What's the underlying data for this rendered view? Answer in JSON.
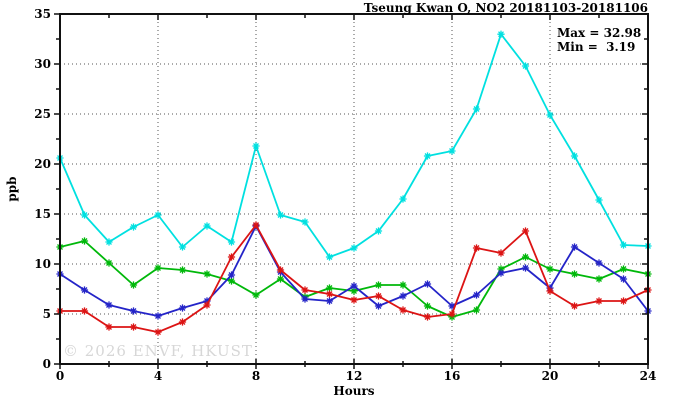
{
  "header": {
    "title": "Tseung Kwan O, NO2 20181103-20181106"
  },
  "annotation": {
    "max_line": "Max = 32.98",
    "min_line": "Min =  3.19"
  },
  "watermark": "© 2026 ENVF, HKUST",
  "chart_data": {
    "type": "line",
    "title": "Tseung Kwan O, NO2 20181103-20181106",
    "xlabel": "Hours",
    "ylabel": "ppb",
    "xlim": [
      0,
      24
    ],
    "ylim": [
      0,
      35
    ],
    "x_ticks": [
      0,
      4,
      8,
      12,
      16,
      20,
      24
    ],
    "y_ticks": [
      0,
      5,
      10,
      15,
      20,
      25,
      30,
      35
    ],
    "x_minor_interval": 2,
    "y_minor_interval": 2.5,
    "grid": true,
    "legend": "none",
    "marker": "asterisk",
    "x": [
      0,
      1,
      2,
      3,
      4,
      5,
      6,
      7,
      8,
      9,
      10,
      11,
      12,
      13,
      14,
      15,
      16,
      17,
      18,
      19,
      20,
      21,
      22,
      23,
      24
    ],
    "series": [
      {
        "name": "cyan-series",
        "color": "#00e0e0",
        "values": [
          20.6,
          14.9,
          12.2,
          13.7,
          14.9,
          11.7,
          13.8,
          12.2,
          21.8,
          14.9,
          14.2,
          10.7,
          11.6,
          13.3,
          16.5,
          20.8,
          21.3,
          25.5,
          32.98,
          29.8,
          24.9,
          20.8,
          16.4,
          11.9,
          11.8
        ]
      },
      {
        "name": "green-series",
        "color": "#00b80a",
        "values": [
          11.7,
          12.3,
          10.1,
          7.9,
          9.6,
          9.4,
          9.0,
          8.3,
          6.9,
          8.5,
          6.7,
          7.6,
          7.3,
          7.9,
          7.9,
          5.8,
          4.7,
          5.4,
          9.5,
          10.7,
          9.5,
          9.0,
          8.5,
          9.5,
          9.0
        ]
      },
      {
        "name": "blue-series",
        "color": "#2424c8",
        "values": [
          9.0,
          7.4,
          5.9,
          5.3,
          4.8,
          5.6,
          6.3,
          8.9,
          13.8,
          9.2,
          6.5,
          6.3,
          7.8,
          5.8,
          6.8,
          8.0,
          5.8,
          6.9,
          9.1,
          9.6,
          7.6,
          11.7,
          10.1,
          8.5,
          5.3
        ]
      },
      {
        "name": "red-series",
        "color": "#dc1414",
        "values": [
          5.3,
          5.3,
          3.7,
          3.7,
          3.19,
          4.2,
          5.9,
          10.7,
          13.9,
          9.4,
          7.4,
          7.0,
          6.4,
          6.8,
          5.4,
          4.7,
          5.0,
          11.6,
          11.1,
          13.3,
          7.3,
          5.8,
          6.3,
          6.3,
          7.4
        ]
      }
    ],
    "stats": {
      "max": 32.98,
      "min": 3.19
    }
  }
}
